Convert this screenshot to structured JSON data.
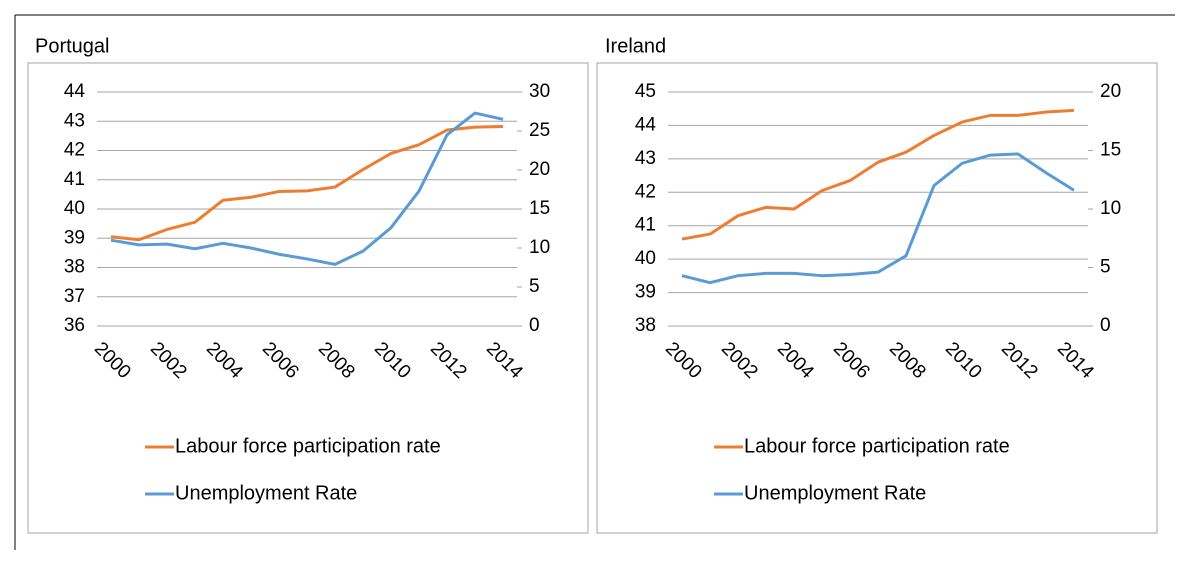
{
  "chart_data": [
    {
      "type": "line",
      "title": "Portugal",
      "categories": [
        "2000",
        null,
        "2002",
        null,
        "2004",
        null,
        "2006",
        null,
        "2008",
        null,
        "2010",
        null,
        "2012",
        null,
        "2014"
      ],
      "series": [
        {
          "name": "Labour force participation rate",
          "color": "#ed7d31",
          "axis": "y",
          "values": [
            39.05,
            38.95,
            39.3,
            39.55,
            40.3,
            40.4,
            40.6,
            40.62,
            40.75,
            41.35,
            41.9,
            42.2,
            42.7,
            42.8,
            42.82
          ]
        },
        {
          "name": "Unemployment Rate",
          "color": "#5b9bd5",
          "axis": "y2",
          "values": [
            11.0,
            10.4,
            10.5,
            9.9,
            10.6,
            10.0,
            9.2,
            8.6,
            7.9,
            9.6,
            12.6,
            17.3,
            24.5,
            27.3,
            26.5
          ]
        }
      ],
      "ylim": [
        36,
        44
      ],
      "yticks": [
        36,
        37,
        38,
        39,
        40,
        41,
        42,
        43,
        44
      ],
      "y2lim": [
        0,
        30
      ],
      "y2ticks": [
        0,
        5,
        10,
        15,
        20,
        25,
        30
      ],
      "grid": true,
      "legend": "bottom"
    },
    {
      "type": "line",
      "title": "Ireland",
      "categories": [
        "2000",
        null,
        "2002",
        null,
        "2004",
        null,
        "2006",
        null,
        "2008",
        null,
        "2010",
        null,
        "2012",
        null,
        "2014"
      ],
      "series": [
        {
          "name": "Labour force participation rate",
          "color": "#ed7d31",
          "axis": "y",
          "values": [
            40.6,
            40.75,
            41.3,
            41.55,
            41.5,
            42.05,
            42.35,
            42.9,
            43.2,
            43.7,
            44.1,
            44.3,
            44.3,
            44.4,
            44.45
          ]
        },
        {
          "name": "Unemployment Rate",
          "color": "#5b9bd5",
          "axis": "y2",
          "values": [
            4.3,
            3.7,
            4.3,
            4.5,
            4.5,
            4.3,
            4.4,
            4.6,
            6.0,
            12.0,
            13.9,
            14.6,
            14.7,
            13.1,
            11.6
          ]
        }
      ],
      "ylim": [
        38,
        45
      ],
      "yticks": [
        38,
        39,
        40,
        41,
        42,
        43,
        44,
        45
      ],
      "y2lim": [
        0,
        20
      ],
      "y2ticks": [
        0,
        5,
        10,
        15,
        20
      ],
      "grid": true,
      "legend": "bottom"
    }
  ]
}
